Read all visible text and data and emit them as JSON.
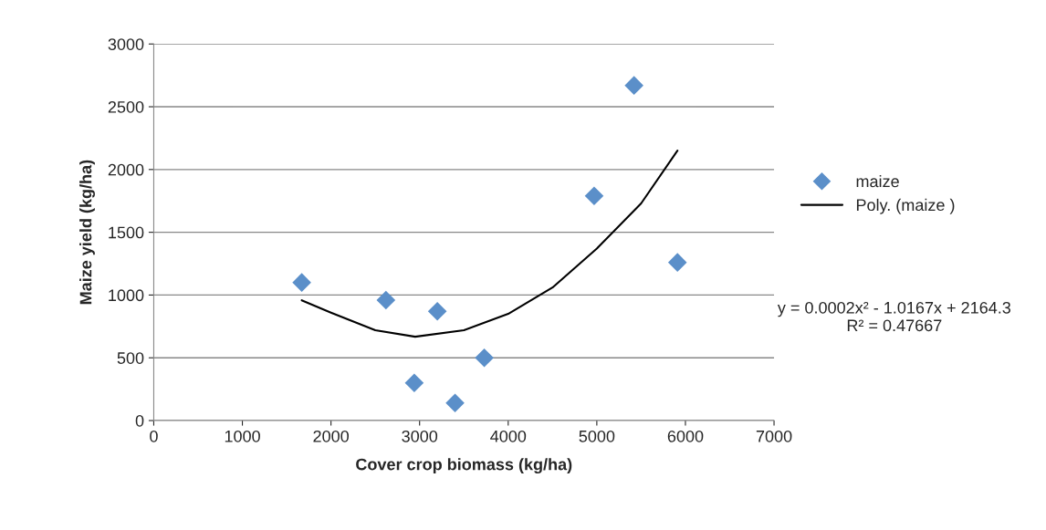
{
  "chart_data": {
    "type": "scatter",
    "xlabel": "Cover crop biomass (kg/ha)",
    "ylabel": "Maize yield (kg/ha)",
    "xlim": [
      0,
      7000
    ],
    "xticks": [
      0,
      1000,
      2000,
      3000,
      4000,
      5000,
      6000,
      7000
    ],
    "ylim": [
      0,
      3000
    ],
    "yticks": [
      0,
      500,
      1000,
      1500,
      2000,
      2500,
      3000
    ],
    "grid": "y",
    "legend": "right",
    "series": [
      {
        "name": "maize",
        "marker": "diamond",
        "color": "#5b8fc9",
        "x": [
          1670,
          2620,
          2940,
          3200,
          3400,
          3730,
          4970,
          5420,
          5910
        ],
        "values": [
          1100,
          960,
          300,
          870,
          140,
          500,
          1790,
          2670,
          1260
        ]
      },
      {
        "name": "Poly. (maize )",
        "type": "line",
        "marker": "none",
        "color": "#000000",
        "x": [
          1670,
          2000,
          2500,
          2950,
          3500,
          4000,
          4500,
          5000,
          5500,
          5910
        ],
        "values": [
          958,
          860,
          720,
          668,
          720,
          850,
          1060,
          1370,
          1730,
          2150
        ]
      }
    ],
    "annotations": [
      "y = 0.0002x² - 1.0167x + 2164.3\nR² = 0.47667"
    ]
  }
}
